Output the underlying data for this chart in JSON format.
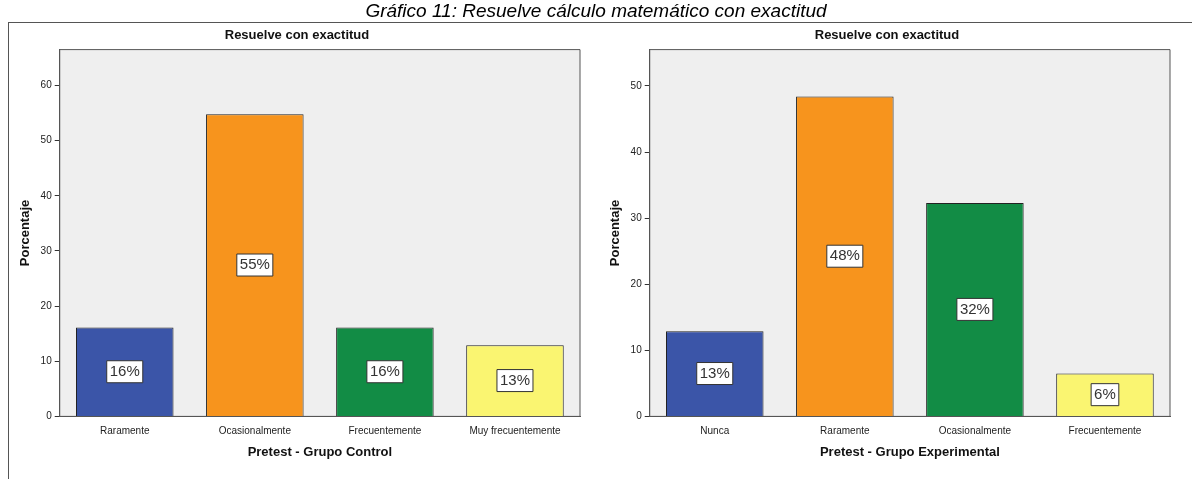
{
  "chart_data": [
    {
      "type": "bar",
      "title": "Resuelve con exactitud",
      "xlabel": "Pretest - Grupo Control",
      "ylabel": "Porcentaje",
      "annotations": [
        "Gráfico 11: Resuelve cálculo matemático con exactitud"
      ],
      "categories": [
        "Raramente",
        "Ocasionalmente",
        "Frecuentemente",
        "Muy frecuentemente"
      ],
      "values": [
        16.1,
        54.8,
        16.1,
        12.9
      ],
      "value_labels": [
        "16%",
        "55%",
        "16%",
        "13%"
      ],
      "colors": [
        "#3b55a8",
        "#f7941d",
        "#128c45",
        "#faf571"
      ],
      "ylim": [
        0,
        66.5
      ],
      "yticks": [
        0,
        10,
        20,
        30,
        40,
        50,
        60
      ],
      "grid": false,
      "legend": false
    },
    {
      "type": "bar",
      "title": "Resuelve con exactitud",
      "xlabel": "Pretest - Grupo Experimental",
      "ylabel": "Porcentaje",
      "categories": [
        "Nunca",
        "Raramente",
        "Ocasionalmente",
        "Frecuentemente"
      ],
      "values": [
        12.9,
        48.4,
        32.3,
        6.5
      ],
      "value_labels": [
        "13%",
        "48%",
        "32%",
        "6%"
      ],
      "colors": [
        "#3b55a8",
        "#f7941d",
        "#128c45",
        "#faf571"
      ],
      "ylim": [
        0,
        55.5
      ],
      "yticks": [
        0,
        10,
        20,
        30,
        40,
        50
      ],
      "grid": false,
      "legend": false
    }
  ]
}
